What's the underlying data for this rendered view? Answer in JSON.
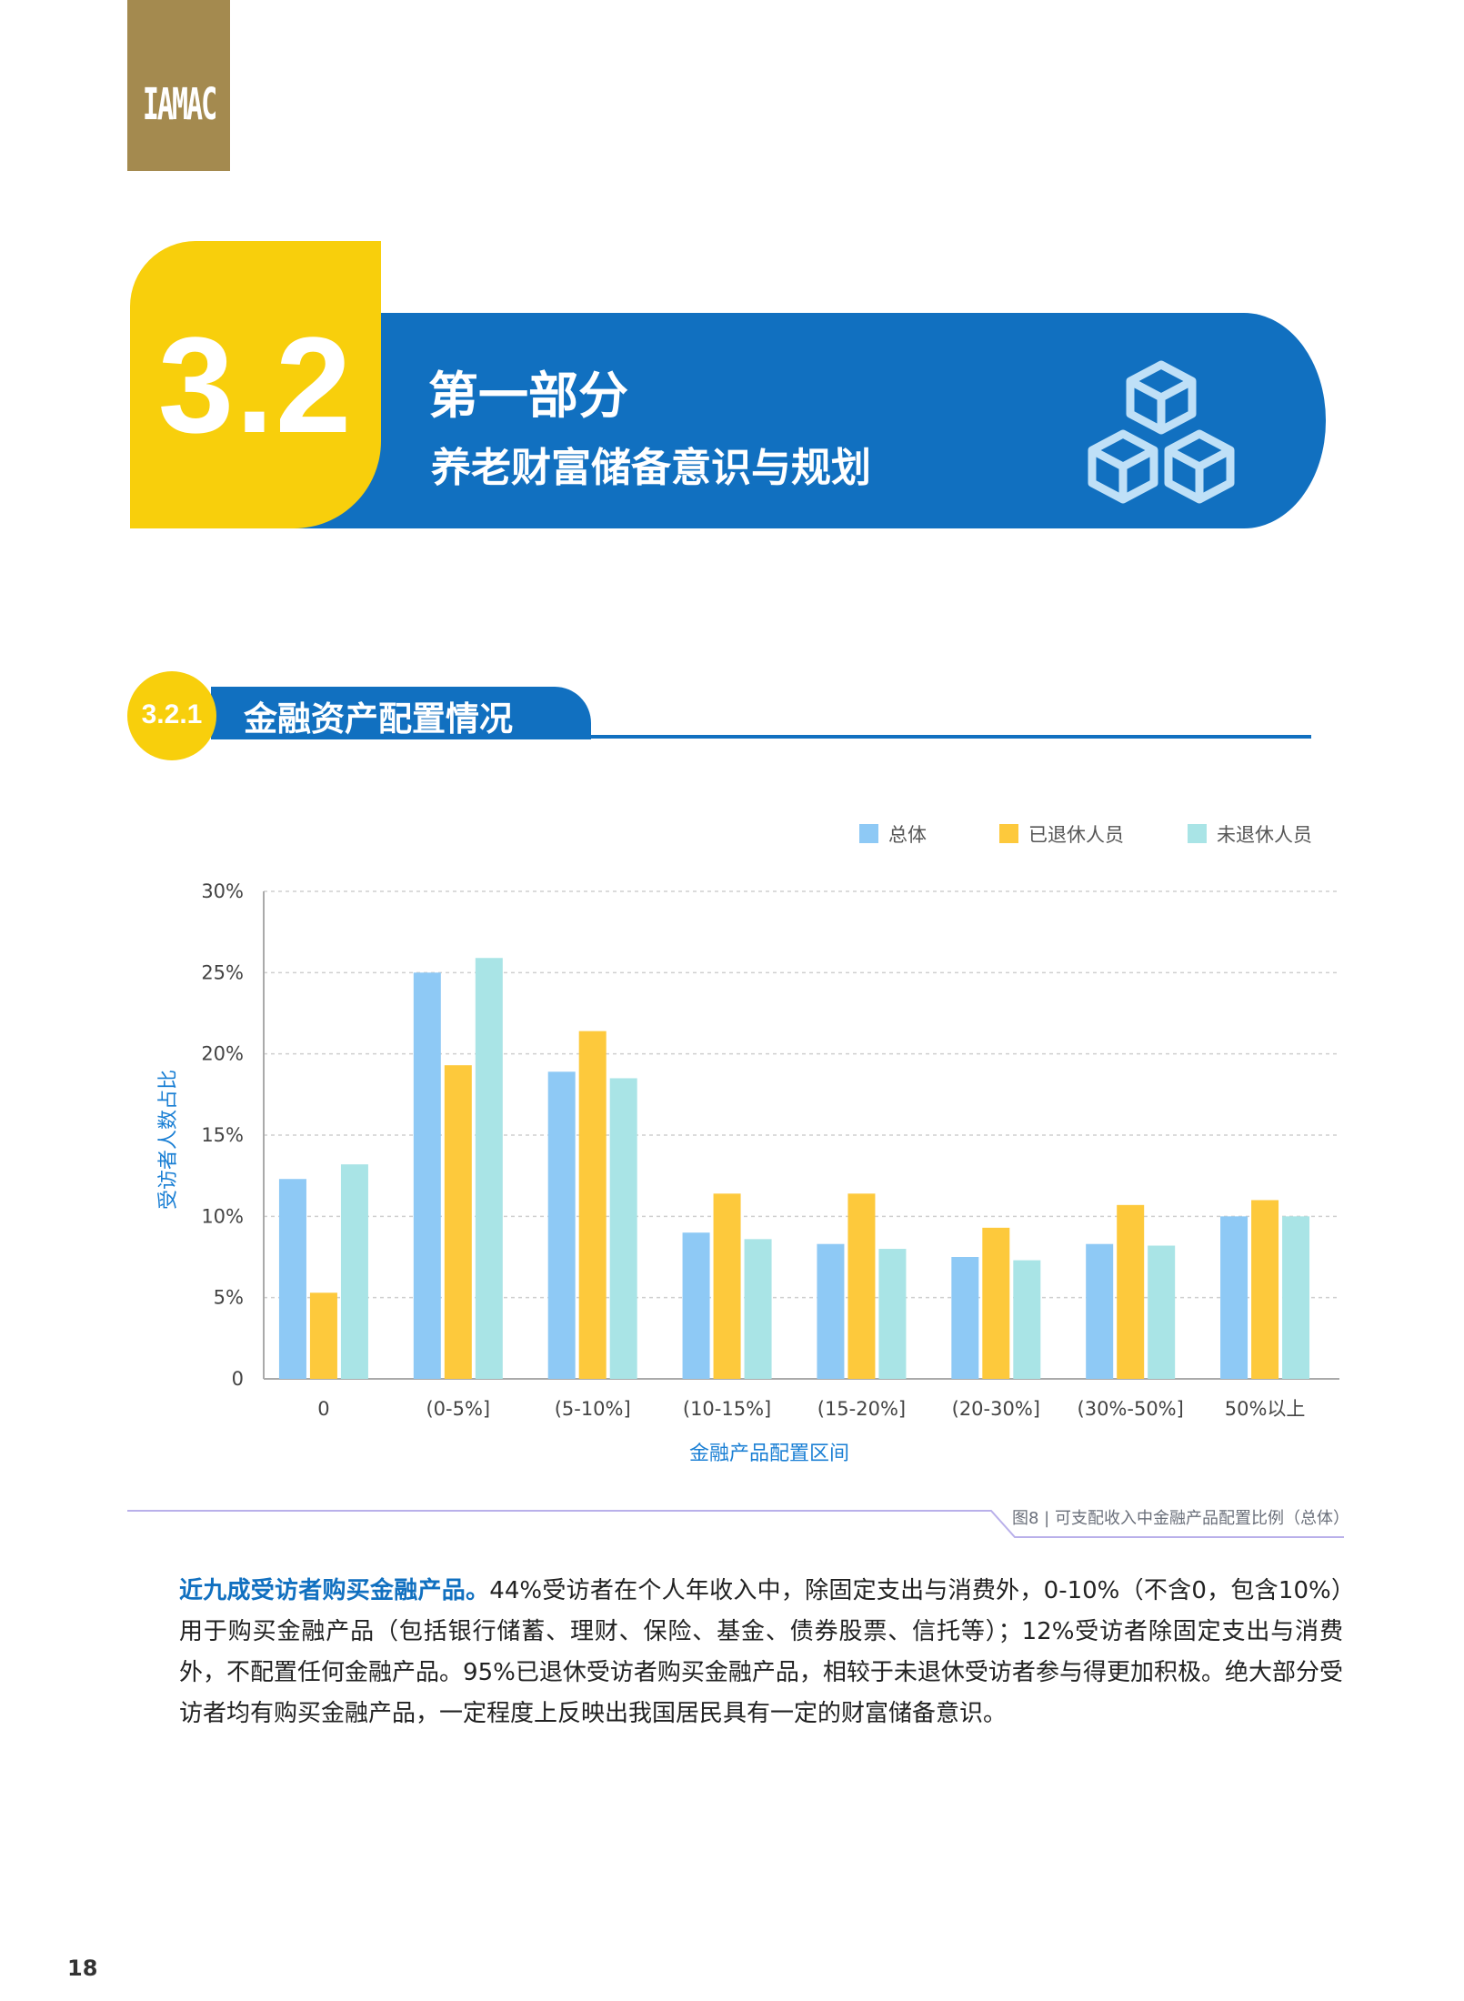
{
  "logo": {
    "text": "IAMAC"
  },
  "section": {
    "number": "3.2",
    "title": "第一部分",
    "subtitle": "养老财富储备意识与规划",
    "icon": "cubes-icon",
    "colors": {
      "blue": "#1170c0",
      "yellow": "#f8cf0c"
    }
  },
  "subsection": {
    "number": "3.2.1",
    "title": "金融资产配置情况"
  },
  "chart_data": {
    "type": "bar",
    "categories": [
      "0",
      "(0-5%]",
      "(5-10%]",
      "(10-15%]",
      "(15-20%]",
      "(20-30%]",
      "(30%-50%]",
      "50%以上"
    ],
    "series": [
      {
        "name": "总体",
        "color": "#8ec9f5",
        "values": [
          12.3,
          25.0,
          18.9,
          9.0,
          8.3,
          7.5,
          8.3,
          10.0
        ]
      },
      {
        "name": "已退休人员",
        "color": "#fdc93c",
        "values": [
          5.3,
          19.3,
          21.4,
          11.4,
          11.4,
          9.3,
          10.7,
          11.0
        ]
      },
      {
        "name": "未退休人员",
        "color": "#a9e4e6",
        "values": [
          13.2,
          25.9,
          18.5,
          8.6,
          8.0,
          7.3,
          8.2,
          10.0
        ]
      }
    ],
    "yticks": [
      "0",
      "5%",
      "10%",
      "15%",
      "20%",
      "25%",
      "30%"
    ],
    "ylim": [
      0,
      30
    ],
    "xlabel": "金融产品配置区间",
    "ylabel": "受访者人数占比",
    "grid": true,
    "legend": "top-right"
  },
  "caption": "图8 | 可支配收入中金融产品配置比例（总体）",
  "body": {
    "lead": "近九成受访者购买金融产品。",
    "text": "44%受访者在个人年收入中，除固定支出与消费外，0-10%（不含0，包含10%）用于购买金融产品（包括银行储蓄、理财、保险、基金、债券股票、信托等）；12%受访者除固定支出与消费外，不配置任何金融产品。95%已退休受访者购买金融产品，相较于未退休受访者参与得更加积极。绝大部分受访者均有购买金融产品，一定程度上反映出我国居民具有一定的财富储备意识。"
  },
  "page_number": "18"
}
